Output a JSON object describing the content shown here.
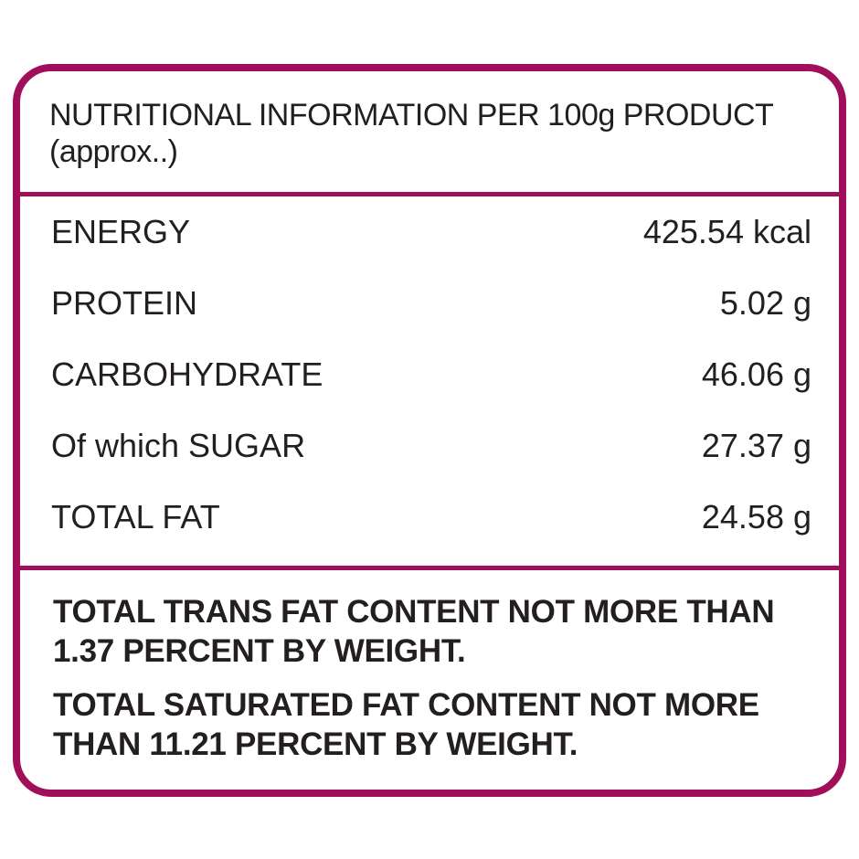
{
  "header": {
    "line1": "NUTRITIONAL INFORMATION PER 100g PRODUCT",
    "line2": "(approx..)"
  },
  "rows": [
    {
      "label": "ENERGY",
      "value": "425.54 kcal"
    },
    {
      "label": "PROTEIN",
      "value": "5.02 g"
    },
    {
      "label": "CARBOHYDRATE",
      "value": "46.06 g"
    },
    {
      "label": "Of which SUGAR",
      "value": "27.37 g"
    },
    {
      "label": "TOTAL FAT",
      "value": "24.58 g"
    }
  ],
  "notes": [
    {
      "line1": "TOTAL TRANS FAT CONTENT NOT MORE THAN",
      "line2": "1.37 PERCENT BY WEIGHT."
    },
    {
      "line1": "TOTAL SATURATED FAT CONTENT NOT MORE",
      "line2": "THAN 11.21 PERCENT BY WEIGHT."
    }
  ],
  "colors": {
    "border": "#a0105a",
    "text": "#231f20"
  }
}
